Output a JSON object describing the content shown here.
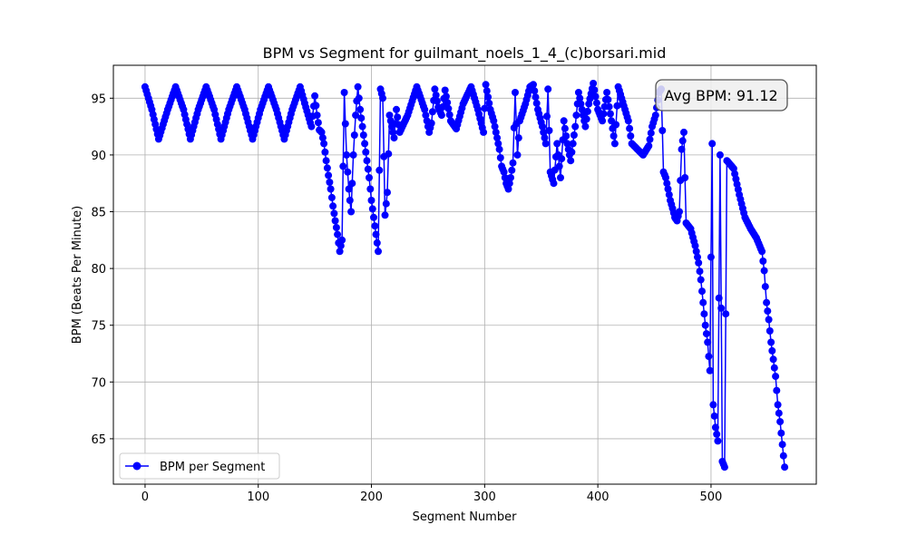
{
  "chart_data": {
    "type": "line",
    "title": "BPM vs Segment for guilmant_noels_1_4_(c)borsari.mid",
    "xlabel": "Segment Number",
    "ylabel": "BPM (Beats Per Minute)",
    "xlim": [
      -28,
      593
    ],
    "ylim": [
      61,
      97.9
    ],
    "xticks": [
      0,
      100,
      200,
      300,
      400,
      500
    ],
    "yticks": [
      65,
      70,
      75,
      80,
      85,
      90,
      95
    ],
    "grid": true,
    "legend_position": "lower-left",
    "annotation": "Avg BPM: 91.12",
    "colors": {
      "line": "#0000ff",
      "grid": "#b0b0b0",
      "annotation_bg": "#eeeeee",
      "annotation_border": "#555555"
    },
    "series": [
      {
        "name": "BPM per Segment",
        "anchors": [
          [
            0,
            96
          ],
          [
            6,
            94
          ],
          [
            12,
            91.4
          ],
          [
            20,
            94
          ],
          [
            27,
            96
          ],
          [
            34,
            94
          ],
          [
            40,
            91.4
          ],
          [
            47,
            94
          ],
          [
            54,
            96
          ],
          [
            61,
            94
          ],
          [
            67,
            91.4
          ],
          [
            74,
            94
          ],
          [
            81,
            96
          ],
          [
            88,
            94
          ],
          [
            95,
            91.4
          ],
          [
            102,
            94
          ],
          [
            109,
            96
          ],
          [
            116,
            94
          ],
          [
            123,
            91.4
          ],
          [
            130,
            94
          ],
          [
            137,
            96
          ],
          [
            142,
            94.2
          ],
          [
            147,
            92.5
          ],
          [
            150,
            95.2
          ],
          [
            152,
            93.5
          ],
          [
            154,
            92.2
          ],
          [
            156,
            92
          ],
          [
            158,
            91
          ],
          [
            160,
            89.5
          ],
          [
            162,
            88.2
          ],
          [
            164,
            87
          ],
          [
            166,
            85.5
          ],
          [
            168,
            84.2
          ],
          [
            170,
            83
          ],
          [
            172,
            81.5
          ],
          [
            174,
            82.5
          ],
          [
            176,
            95.5
          ],
          [
            178,
            90
          ],
          [
            180,
            87
          ],
          [
            182,
            85
          ],
          [
            184,
            90
          ],
          [
            186,
            93.5
          ],
          [
            188,
            96
          ],
          [
            190,
            94
          ],
          [
            192,
            92.5
          ],
          [
            194,
            91
          ],
          [
            196,
            89.5
          ],
          [
            198,
            88
          ],
          [
            200,
            86
          ],
          [
            202,
            84.5
          ],
          [
            204,
            83
          ],
          [
            206,
            81.5
          ],
          [
            208,
            95.8
          ],
          [
            210,
            95
          ],
          [
            212,
            84.7
          ],
          [
            214,
            86.7
          ],
          [
            216,
            93.5
          ],
          [
            218,
            92.5
          ],
          [
            220,
            91.5
          ],
          [
            222,
            94
          ],
          [
            225,
            92
          ],
          [
            232,
            93.5
          ],
          [
            240,
            96
          ],
          [
            247,
            94
          ],
          [
            251,
            92
          ],
          [
            253,
            92.8
          ],
          [
            256,
            95.8
          ],
          [
            259,
            94.2
          ],
          [
            262,
            93.5
          ],
          [
            265,
            95.7
          ],
          [
            270,
            93
          ],
          [
            275,
            92.3
          ],
          [
            281,
            94.5
          ],
          [
            288,
            96
          ],
          [
            294,
            94
          ],
          [
            299,
            92
          ],
          [
            301,
            96.2
          ],
          [
            305,
            94
          ],
          [
            308,
            93
          ],
          [
            311,
            91.5
          ],
          [
            313,
            90.5
          ],
          [
            315,
            89
          ],
          [
            317,
            88.5
          ],
          [
            319,
            87.5
          ],
          [
            321,
            87
          ],
          [
            323,
            88
          ],
          [
            325,
            89.3
          ],
          [
            327,
            95.5
          ],
          [
            329,
            90
          ],
          [
            331,
            93
          ],
          [
            336,
            94.5
          ],
          [
            340,
            96
          ],
          [
            343,
            96.2
          ],
          [
            347,
            94
          ],
          [
            351,
            92.5
          ],
          [
            354,
            91
          ],
          [
            356,
            95.8
          ],
          [
            358,
            88.5
          ],
          [
            361,
            87.5
          ],
          [
            364,
            91
          ],
          [
            367,
            88
          ],
          [
            370,
            93
          ],
          [
            373,
            91
          ],
          [
            376,
            89.5
          ],
          [
            380,
            92.5
          ],
          [
            383,
            95.5
          ],
          [
            386,
            94
          ],
          [
            389,
            92.5
          ],
          [
            392,
            94.5
          ],
          [
            396,
            96.3
          ],
          [
            400,
            94
          ],
          [
            404,
            93
          ],
          [
            408,
            95.5
          ],
          [
            412,
            93
          ],
          [
            415,
            91
          ],
          [
            418,
            96
          ],
          [
            421,
            95
          ],
          [
            424,
            94
          ],
          [
            427,
            93
          ],
          [
            430,
            91
          ],
          [
            435,
            90.5
          ],
          [
            440,
            90
          ],
          [
            445,
            90.8
          ],
          [
            448,
            92.5
          ],
          [
            451,
            93.5
          ],
          [
            454,
            95.5
          ],
          [
            456,
            95.8
          ],
          [
            458,
            88.5
          ],
          [
            460,
            88
          ],
          [
            462,
            87
          ],
          [
            464,
            86
          ],
          [
            466,
            85.3
          ],
          [
            468,
            84.5
          ],
          [
            470,
            84.2
          ],
          [
            472,
            85
          ],
          [
            474,
            90.5
          ],
          [
            476,
            92
          ],
          [
            478,
            84
          ],
          [
            482,
            83.5
          ],
          [
            486,
            82
          ],
          [
            489,
            80.5
          ],
          [
            491,
            79
          ],
          [
            493,
            77
          ],
          [
            495,
            75
          ],
          [
            497,
            73.5
          ],
          [
            499,
            71
          ],
          [
            501,
            91
          ],
          [
            502,
            68
          ],
          [
            504,
            66
          ],
          [
            506,
            64.8
          ],
          [
            508,
            90
          ],
          [
            510,
            63
          ],
          [
            512,
            62.5
          ],
          [
            514,
            89.5
          ],
          [
            520,
            88.8
          ],
          [
            525,
            86.5
          ],
          [
            530,
            84.5
          ],
          [
            535,
            83.5
          ],
          [
            540,
            82.7
          ],
          [
            545,
            81.5
          ],
          [
            547,
            79.8
          ],
          [
            549,
            77
          ],
          [
            551,
            75.5
          ],
          [
            553,
            73.5
          ],
          [
            555,
            72
          ],
          [
            557,
            70.5
          ],
          [
            559,
            68
          ],
          [
            561,
            66.5
          ],
          [
            563,
            64.5
          ],
          [
            565,
            62.5
          ]
        ]
      }
    ]
  }
}
